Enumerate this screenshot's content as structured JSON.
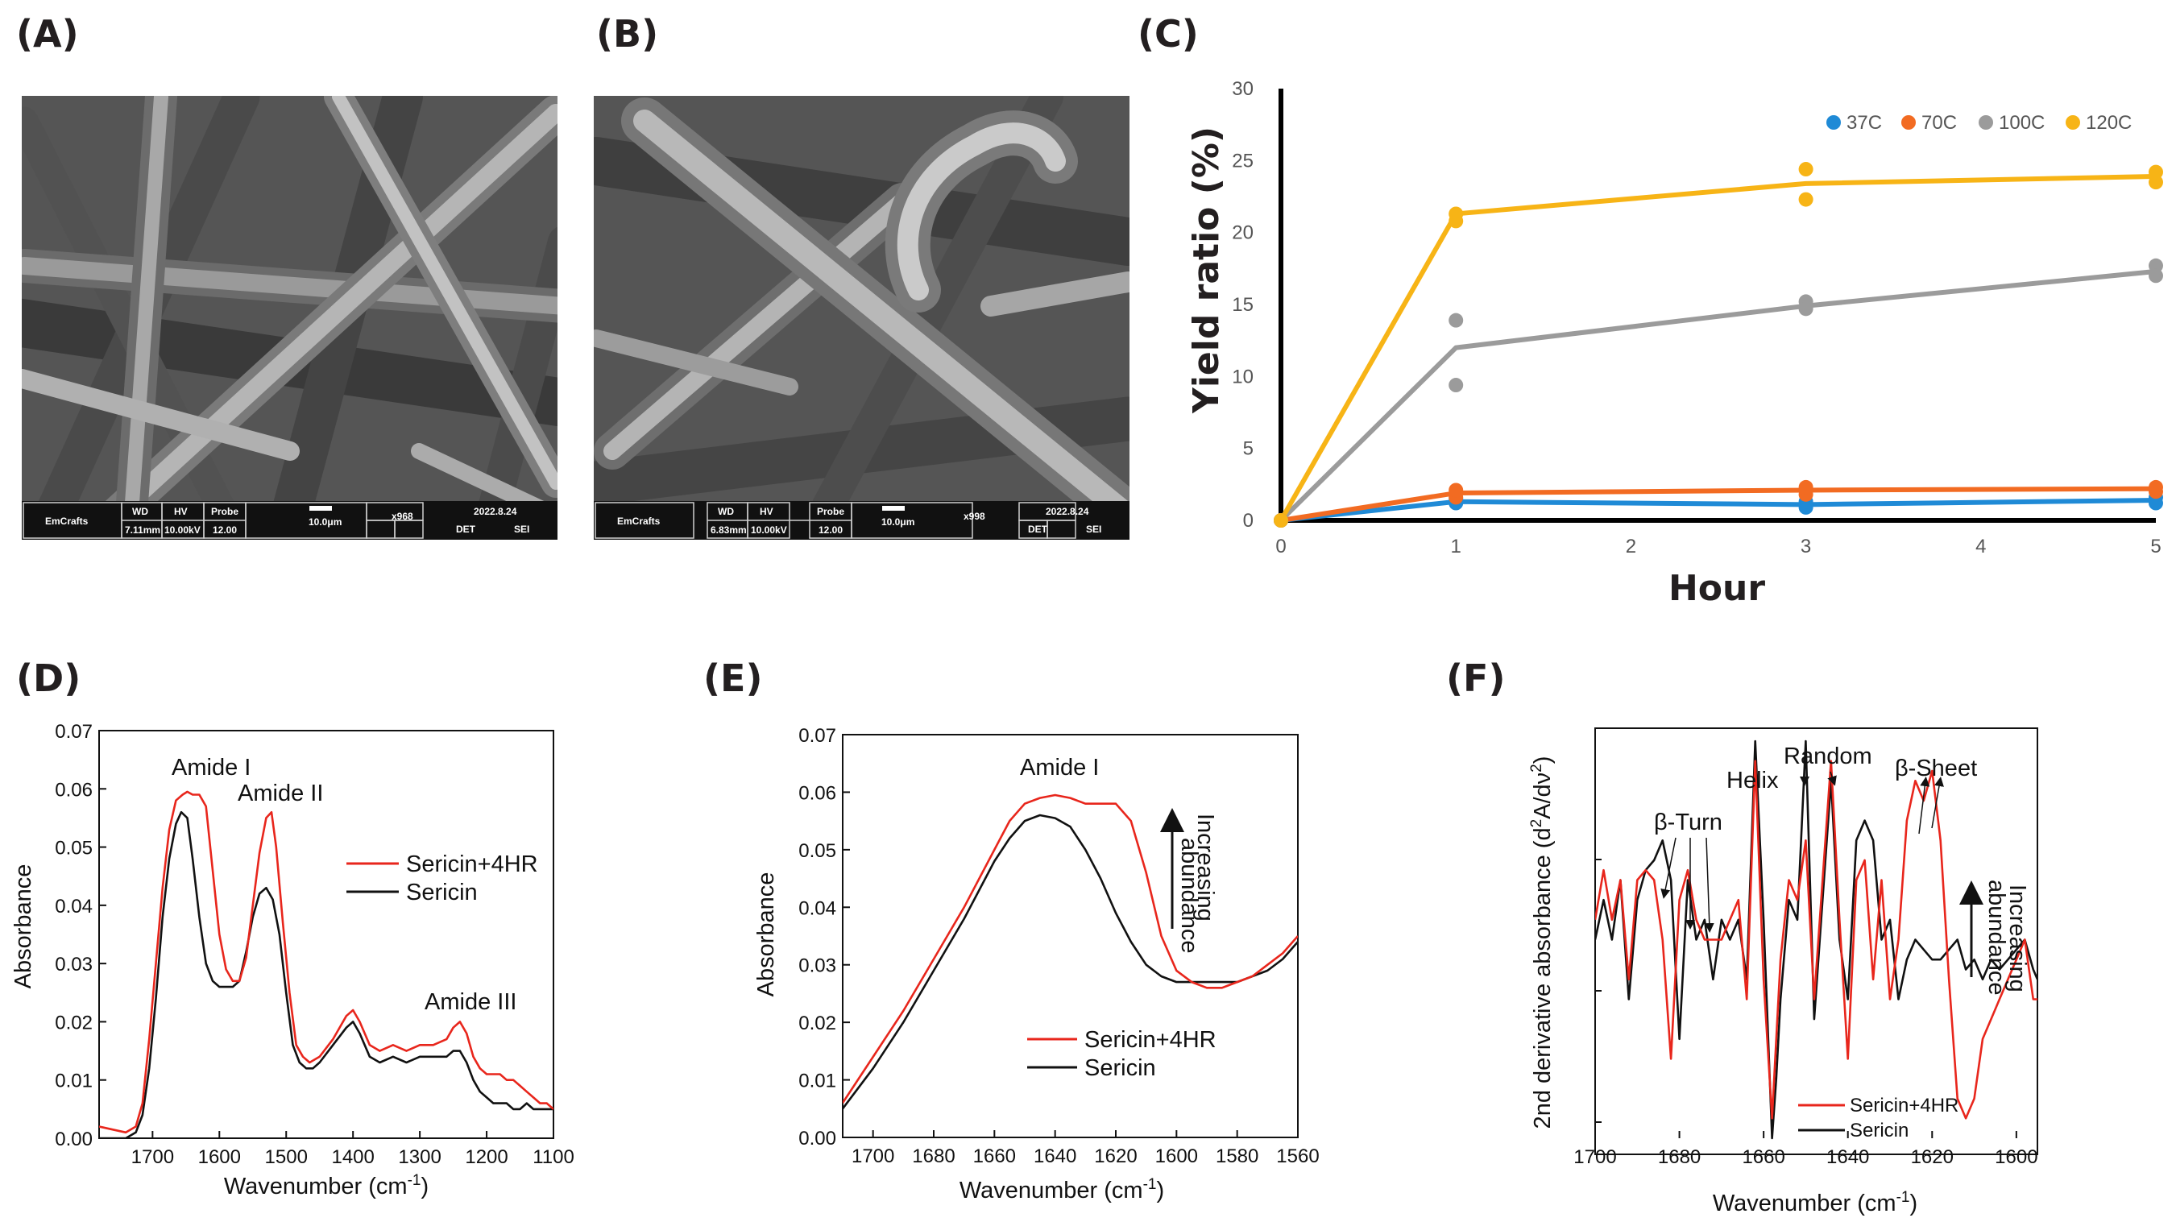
{
  "colors": {
    "red": "#e8261c",
    "black": "#111111",
    "blue": "#1f8ad6",
    "orange": "#f26b22",
    "gray": "#9b9b9b",
    "yellow": "#f7b416"
  },
  "panels": {
    "a": "(A)",
    "b": "(B)",
    "c": "(C)",
    "d": "(D)",
    "e": "(E)",
    "f": "(F)"
  },
  "sem": {
    "a": {
      "brand": "EmCrafts",
      "h1": "WD",
      "h2": "HV",
      "h3": "Probe",
      "v1": "7.11mm",
      "v2": "10.00kV",
      "v3": "12.00",
      "scale": "10.0μm",
      "mag": "x968",
      "date": "2022.8.24",
      "det": "DET",
      "sei": "SEI"
    },
    "b": {
      "brand": "EmCrafts",
      "h1": "WD",
      "h2": "HV",
      "h3": "Probe",
      "v1": "6.83mm",
      "v2": "10.00kV",
      "v3": "12.00",
      "scale": "10.0μm",
      "mag": "x998",
      "date": "2022.8.24",
      "det": "DET",
      "sei": "SEI"
    }
  },
  "chart_data": [
    {
      "id": "C",
      "type": "line",
      "xlabel": "Hour",
      "ylabel": "Yield ratio (%)",
      "xticks": [
        "0",
        "1",
        "2",
        "3",
        "4",
        "5"
      ],
      "yticks": [
        "0",
        "5",
        "10",
        "15",
        "20",
        "25",
        "30"
      ],
      "xlim": [
        0,
        5
      ],
      "ylim": [
        0,
        30
      ],
      "legend_position": "top-right",
      "series": [
        {
          "name": "37C",
          "x": [
            0,
            1,
            3,
            5
          ],
          "values": [
            0,
            1.3,
            1.1,
            1.4
          ],
          "points": [
            [
              0,
              0
            ],
            [
              1,
              1.2
            ],
            [
              1,
              1.5
            ],
            [
              3,
              0.9
            ],
            [
              3,
              1.3
            ],
            [
              5,
              1.2
            ],
            [
              5,
              1.6
            ]
          ]
        },
        {
          "name": "70C",
          "x": [
            0,
            1,
            3,
            5
          ],
          "values": [
            0,
            1.9,
            2.1,
            2.2
          ],
          "points": [
            [
              0,
              0
            ],
            [
              1,
              1.6
            ],
            [
              1,
              2.1
            ],
            [
              3,
              1.8
            ],
            [
              3,
              2.3
            ],
            [
              5,
              2.0
            ],
            [
              5,
              2.3
            ]
          ]
        },
        {
          "name": "100C",
          "x": [
            0,
            1,
            3,
            5
          ],
          "values": [
            0,
            12.0,
            14.9,
            17.3
          ],
          "points": [
            [
              0,
              0
            ],
            [
              1,
              13.9
            ],
            [
              1,
              9.4
            ],
            [
              3,
              15.2
            ],
            [
              3,
              14.7
            ],
            [
              5,
              17.7
            ],
            [
              5,
              17.0
            ]
          ]
        },
        {
          "name": "120C",
          "x": [
            0,
            1,
            3,
            5
          ],
          "values": [
            0,
            21.3,
            23.4,
            23.9
          ],
          "points": [
            [
              0,
              0
            ],
            [
              1,
              21.3
            ],
            [
              1,
              20.8
            ],
            [
              3,
              24.4
            ],
            [
              3,
              22.3
            ],
            [
              5,
              24.2
            ],
            [
              5,
              23.5
            ]
          ]
        }
      ]
    },
    {
      "id": "D",
      "type": "line",
      "xlabel": "Wavenumber (cm",
      "xlabel_sup": "-1",
      "xlabel_end": ")",
      "ylabel": "Absorbance",
      "xlim": [
        1780,
        1100
      ],
      "ylim": [
        0,
        0.07
      ],
      "xticks": [
        "1700",
        "1600",
        "1500",
        "1400",
        "1300",
        "1200",
        "1100"
      ],
      "yticks": [
        "0.00",
        "0.01",
        "0.02",
        "0.03",
        "0.04",
        "0.05",
        "0.06",
        "0.07"
      ],
      "annotations": [
        "Amide I",
        "Amide II",
        "Amide III"
      ],
      "legend_position": "center-right",
      "series": [
        {
          "name": "Sericin+4HR",
          "x": [
            1780,
            1760,
            1740,
            1725,
            1715,
            1705,
            1695,
            1685,
            1675,
            1665,
            1655,
            1648,
            1640,
            1630,
            1620,
            1610,
            1600,
            1590,
            1580,
            1570,
            1560,
            1550,
            1540,
            1530,
            1522,
            1515,
            1505,
            1495,
            1485,
            1475,
            1465,
            1450,
            1430,
            1410,
            1400,
            1390,
            1375,
            1360,
            1340,
            1320,
            1300,
            1280,
            1260,
            1250,
            1240,
            1230,
            1220,
            1210,
            1200,
            1190,
            1180,
            1170,
            1160,
            1150,
            1140,
            1130,
            1120,
            1110,
            1100
          ],
          "values": [
            0.002,
            0.0015,
            0.001,
            0.002,
            0.006,
            0.017,
            0.03,
            0.043,
            0.053,
            0.058,
            0.059,
            0.0595,
            0.059,
            0.059,
            0.057,
            0.046,
            0.035,
            0.029,
            0.027,
            0.027,
            0.031,
            0.04,
            0.049,
            0.055,
            0.056,
            0.05,
            0.037,
            0.025,
            0.016,
            0.014,
            0.013,
            0.014,
            0.017,
            0.021,
            0.022,
            0.02,
            0.016,
            0.015,
            0.016,
            0.015,
            0.016,
            0.016,
            0.017,
            0.019,
            0.02,
            0.018,
            0.014,
            0.012,
            0.011,
            0.011,
            0.011,
            0.01,
            0.01,
            0.009,
            0.008,
            0.007,
            0.006,
            0.006,
            0.005
          ]
        },
        {
          "name": "Sericin",
          "x": [
            1780,
            1760,
            1740,
            1725,
            1715,
            1705,
            1695,
            1685,
            1675,
            1665,
            1657,
            1648,
            1640,
            1630,
            1620,
            1610,
            1600,
            1590,
            1580,
            1570,
            1560,
            1550,
            1540,
            1530,
            1520,
            1510,
            1500,
            1490,
            1480,
            1470,
            1460,
            1450,
            1430,
            1410,
            1400,
            1390,
            1375,
            1360,
            1340,
            1320,
            1300,
            1280,
            1260,
            1250,
            1240,
            1230,
            1220,
            1210,
            1200,
            1190,
            1180,
            1170,
            1160,
            1150,
            1140,
            1130,
            1120,
            1110,
            1100
          ],
          "values": [
            0,
            0,
            0,
            0.001,
            0.004,
            0.012,
            0.024,
            0.038,
            0.048,
            0.054,
            0.056,
            0.055,
            0.048,
            0.038,
            0.03,
            0.027,
            0.026,
            0.026,
            0.026,
            0.027,
            0.032,
            0.038,
            0.042,
            0.043,
            0.041,
            0.035,
            0.025,
            0.016,
            0.013,
            0.012,
            0.012,
            0.013,
            0.016,
            0.019,
            0.02,
            0.018,
            0.014,
            0.013,
            0.014,
            0.013,
            0.014,
            0.014,
            0.014,
            0.015,
            0.015,
            0.013,
            0.01,
            0.008,
            0.007,
            0.006,
            0.006,
            0.006,
            0.005,
            0.005,
            0.006,
            0.005,
            0.005,
            0.005,
            0.005
          ]
        }
      ]
    },
    {
      "id": "E",
      "type": "line",
      "xlabel": "Wavenumber (cm",
      "xlabel_sup": "-1",
      "xlabel_end": ")",
      "ylabel": "Absorbance",
      "xlim": [
        1710,
        1560
      ],
      "ylim": [
        0,
        0.07
      ],
      "xticks": [
        "1700",
        "1680",
        "1660",
        "1640",
        "1620",
        "1600",
        "1580",
        "1560"
      ],
      "yticks": [
        "0.00",
        "0.01",
        "0.02",
        "0.03",
        "0.04",
        "0.05",
        "0.06",
        "0.07"
      ],
      "annotations": [
        "Amide I",
        "Increasing",
        "abundance"
      ],
      "legend_position": "bottom-right",
      "series": [
        {
          "name": "Sericin+4HR",
          "x": [
            1710,
            1700,
            1690,
            1680,
            1670,
            1665,
            1660,
            1655,
            1650,
            1645,
            1640,
            1635,
            1630,
            1625,
            1620,
            1615,
            1610,
            1605,
            1600,
            1595,
            1590,
            1585,
            1580,
            1575,
            1570,
            1565,
            1560
          ],
          "values": [
            0.006,
            0.014,
            0.022,
            0.031,
            0.04,
            0.045,
            0.05,
            0.055,
            0.058,
            0.059,
            0.0595,
            0.059,
            0.058,
            0.058,
            0.058,
            0.055,
            0.046,
            0.035,
            0.029,
            0.027,
            0.026,
            0.026,
            0.027,
            0.028,
            0.03,
            0.032,
            0.035
          ]
        },
        {
          "name": "Sericin",
          "x": [
            1710,
            1700,
            1690,
            1680,
            1670,
            1665,
            1660,
            1655,
            1650,
            1645,
            1640,
            1635,
            1630,
            1625,
            1620,
            1615,
            1610,
            1605,
            1600,
            1595,
            1590,
            1585,
            1580,
            1575,
            1570,
            1565,
            1560
          ],
          "values": [
            0.005,
            0.012,
            0.02,
            0.029,
            0.038,
            0.043,
            0.048,
            0.052,
            0.055,
            0.056,
            0.0555,
            0.054,
            0.05,
            0.045,
            0.039,
            0.034,
            0.03,
            0.028,
            0.027,
            0.027,
            0.027,
            0.027,
            0.027,
            0.028,
            0.029,
            0.031,
            0.034
          ]
        }
      ]
    },
    {
      "id": "F",
      "type": "line",
      "xlabel": "Wavenumber (cm",
      "xlabel_sup": "-1",
      "xlabel_end": ")",
      "ylabel": "2nd derivative absorbance (d",
      "ylabel_sup1": "2",
      "ylabel_mid": "A/dν",
      "ylabel_sup2": "2",
      "ylabel_end": ")",
      "xlim": [
        1700,
        1595
      ],
      "ylim": [
        -1,
        1
      ],
      "xticks": [
        "1700",
        "1680",
        "1660",
        "1640",
        "1620",
        "1600"
      ],
      "yticks": [],
      "annotations": [
        "β-Turn",
        "Helix",
        "Random",
        "β-Sheet",
        "Increasing",
        "abundance"
      ],
      "legend_position": "bottom-right",
      "series": [
        {
          "name": "Sericin+4HR",
          "x": [
            1700,
            1698,
            1696,
            1694,
            1692,
            1690,
            1688,
            1686,
            1684,
            1682,
            1680,
            1678,
            1676,
            1674,
            1672,
            1670,
            1668,
            1666,
            1664,
            1662,
            1660,
            1658,
            1657,
            1656,
            1654,
            1652,
            1650,
            1648,
            1646,
            1644,
            1642,
            1640,
            1638,
            1636,
            1634,
            1632,
            1630,
            1628,
            1626,
            1624,
            1622,
            1620,
            1618,
            1616,
            1614,
            1612,
            1610,
            1608,
            1606,
            1604,
            1602,
            1600,
            1598,
            1596,
            1595
          ],
          "values": [
            0.1,
            0.35,
            0.1,
            0.3,
            -0.2,
            0.3,
            0.35,
            0.3,
            0.0,
            -0.6,
            0.2,
            0.35,
            0.1,
            0.0,
            0.0,
            0.0,
            0.1,
            0.2,
            -0.3,
            0.9,
            -0.2,
            -0.9,
            -0.5,
            -0.1,
            0.3,
            0.2,
            0.5,
            -0.3,
            0.3,
            0.9,
            0.1,
            -0.6,
            0.3,
            0.4,
            -0.2,
            0.3,
            -0.3,
            0.0,
            0.6,
            0.8,
            0.7,
            0.85,
            0.5,
            -0.2,
            -0.8,
            -0.9,
            -0.8,
            -0.5,
            -0.4,
            -0.3,
            -0.2,
            -0.1,
            0.0,
            -0.3,
            -0.3
          ]
        },
        {
          "name": "Sericin",
          "x": [
            1700,
            1698,
            1696,
            1694,
            1692,
            1690,
            1688,
            1686,
            1684,
            1682,
            1680,
            1678,
            1676,
            1674,
            1672,
            1670,
            1668,
            1666,
            1664,
            1662,
            1660,
            1658,
            1657,
            1656,
            1654,
            1652,
            1650,
            1648,
            1646,
            1644,
            1642,
            1640,
            1638,
            1636,
            1634,
            1632,
            1630,
            1628,
            1626,
            1624,
            1622,
            1620,
            1618,
            1616,
            1614,
            1612,
            1610,
            1608,
            1606,
            1604,
            1602,
            1600,
            1598,
            1596,
            1595
          ],
          "values": [
            0.0,
            0.2,
            0.0,
            0.3,
            -0.3,
            0.2,
            0.35,
            0.4,
            0.5,
            0.3,
            -0.5,
            0.3,
            0.0,
            0.1,
            -0.2,
            0.1,
            0.0,
            0.1,
            -0.2,
            1.0,
            0.1,
            -1.0,
            -0.7,
            -0.3,
            0.2,
            0.1,
            1.0,
            -0.4,
            0.2,
            0.8,
            0.0,
            -0.3,
            0.5,
            0.6,
            0.5,
            0.0,
            0.1,
            -0.3,
            -0.1,
            0.0,
            -0.05,
            -0.1,
            -0.1,
            -0.05,
            0.0,
            -0.15,
            -0.1,
            -0.2,
            -0.1,
            -0.15,
            -0.1,
            -0.05,
            0.0,
            -0.15,
            -0.2
          ]
        }
      ]
    }
  ]
}
